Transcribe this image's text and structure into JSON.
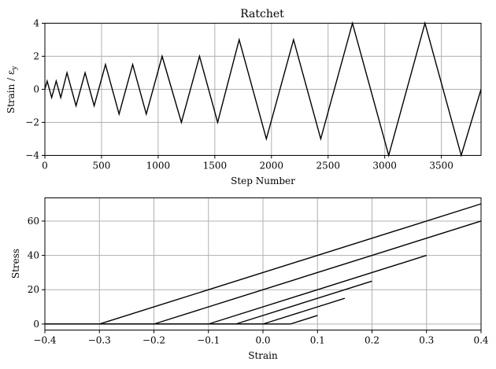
{
  "chart_data": [
    {
      "type": "line",
      "title": "Ratchet",
      "xlabel": "Step Number",
      "ylabel": "Strain / ε_y",
      "xlim": [
        0,
        3850
      ],
      "ylim": [
        -4,
        4
      ],
      "xticks": [
        "0",
        "500",
        "1000",
        "1500",
        "2000",
        "2500",
        "3000",
        "3500"
      ],
      "yticks": [
        "−4",
        "−2",
        "0",
        "2",
        "4"
      ],
      "grid": true,
      "series": [
        {
          "x": [
            0,
            20,
            60,
            100,
            140,
            195,
            275,
            355,
            435,
            535,
            655,
            775,
            895,
            1035,
            1205,
            1365,
            1525,
            1715,
            1955,
            2195,
            2435,
            2715,
            3035,
            3355,
            3675,
            3850
          ],
          "values": [
            0,
            0.5,
            -0.5,
            0.5,
            -0.5,
            1,
            -1,
            1,
            -1,
            1.5,
            -1.5,
            1.5,
            -1.5,
            2,
            -2,
            2,
            -2,
            3,
            -3,
            3,
            -3,
            4,
            -4,
            4,
            -4,
            0
          ]
        }
      ]
    },
    {
      "type": "line",
      "title": "",
      "xlabel": "Strain",
      "ylabel": "Stress",
      "xlim": [
        -0.4,
        0.4
      ],
      "ylim": [
        -3.5,
        73.5
      ],
      "xticks": [
        "−0.4",
        "−0.3",
        "−0.2",
        "−0.1",
        "0.0",
        "0.1",
        "0.2",
        "0.3",
        "0.4"
      ],
      "yticks": [
        "0",
        "20",
        "40",
        "60"
      ],
      "grid": true,
      "series": [
        {
          "x": [
            -0.4,
            0.05,
            0.1
          ],
          "values": [
            0,
            0,
            5
          ]
        },
        {
          "x": [
            -0.4,
            0.0,
            0.15
          ],
          "values": [
            0,
            0,
            15
          ]
        },
        {
          "x": [
            -0.4,
            -0.05,
            0.2
          ],
          "values": [
            0,
            0,
            25
          ]
        },
        {
          "x": [
            -0.4,
            -0.1,
            0.3
          ],
          "values": [
            0,
            0,
            40
          ]
        },
        {
          "x": [
            -0.4,
            -0.2,
            0.4
          ],
          "values": [
            0,
            0,
            60
          ]
        },
        {
          "x": [
            -0.4,
            -0.3,
            0.4
          ],
          "values": [
            0,
            0,
            70
          ]
        }
      ]
    }
  ]
}
